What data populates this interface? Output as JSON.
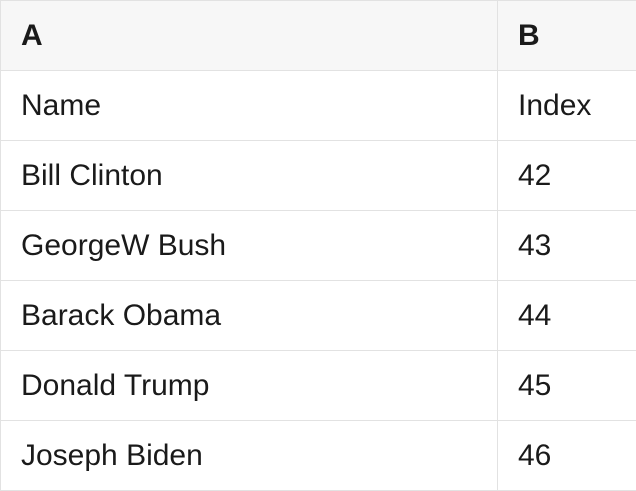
{
  "table": {
    "column_headers": [
      "A",
      "B"
    ],
    "rows": [
      {
        "name": "Name",
        "index": "Index"
      },
      {
        "name": "Bill Clinton",
        "index": "42"
      },
      {
        "name": "GeorgeW Bush",
        "index": "43"
      },
      {
        "name": "Barack Obama",
        "index": "44"
      },
      {
        "name": "Donald Trump",
        "index": "45"
      },
      {
        "name": "Joseph Biden",
        "index": "46"
      }
    ]
  },
  "colors": {
    "header_bg": "#f7f7f7",
    "border": "#e2e2e2",
    "body_bg": "#ffffff",
    "text": "#1a1a1a"
  }
}
